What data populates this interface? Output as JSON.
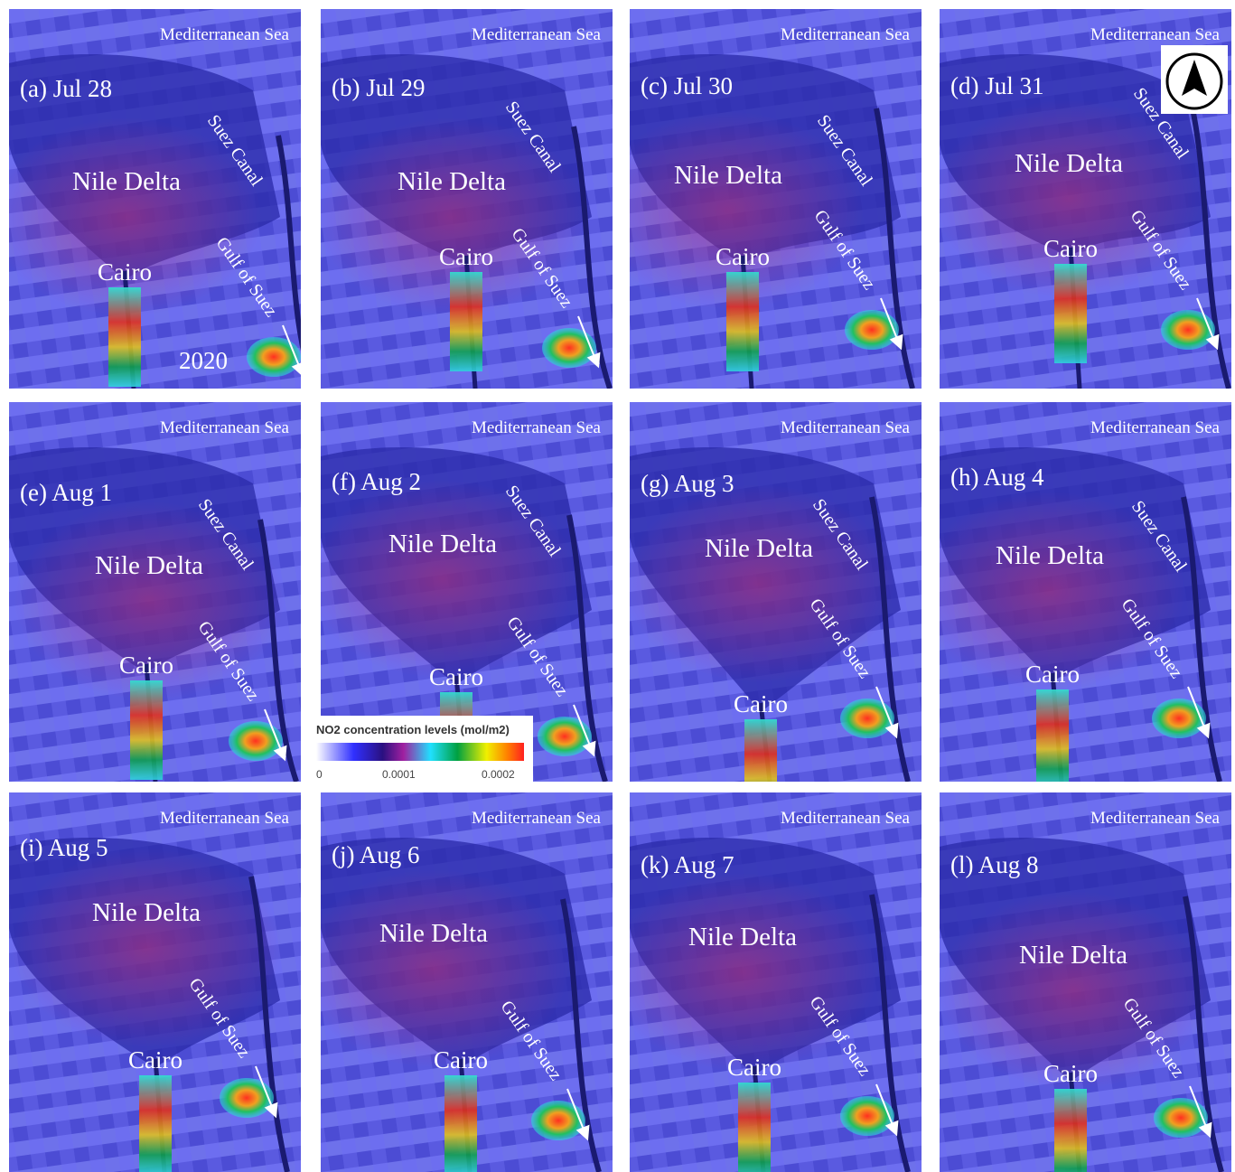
{
  "panels": [
    {
      "label": "(a) Jul 28",
      "sea": "Mediterranean Sea",
      "delta": "Nile Delta",
      "city": "Cairo",
      "canal": "Suez Canal",
      "gulf": "Gulf of Suez",
      "year": "2020"
    },
    {
      "label": "(b) Jul 29",
      "sea": "Mediterranean Sea",
      "delta": "Nile Delta",
      "city": "Cairo",
      "canal": "Suez Canal",
      "gulf": "Gulf of Suez"
    },
    {
      "label": "(c) Jul 30",
      "sea": "Mediterranean Sea",
      "delta": "Nile Delta",
      "city": "Cairo",
      "canal": "Suez Canal",
      "gulf": "Gulf of Suez"
    },
    {
      "label": "(d) Jul 31",
      "sea": "Mediterranean Sea",
      "delta": "Nile Delta",
      "city": "Cairo",
      "canal": "Suez Canal",
      "gulf": "Gulf of Suez"
    },
    {
      "label": "(e) Aug 1",
      "sea": "Mediterranean Sea",
      "delta": "Nile Delta",
      "city": "Cairo",
      "canal": "Suez Canal",
      "gulf": "Gulf of Suez"
    },
    {
      "label": "(f) Aug 2",
      "sea": "Mediterranean Sea",
      "delta": "Nile Delta",
      "city": "Cairo",
      "canal": "Suez Canal",
      "gulf": "Gulf of Suez"
    },
    {
      "label": "(g) Aug 3",
      "sea": "Mediterranean Sea",
      "delta": "Nile Delta",
      "city": "Cairo",
      "canal": "Suez Canal",
      "gulf": "Gulf of Suez"
    },
    {
      "label": "(h) Aug 4",
      "sea": "Mediterranean Sea",
      "delta": "Nile Delta",
      "city": "Cairo",
      "canal": "Suez Canal",
      "gulf": "Gulf of Suez"
    },
    {
      "label": "(i) Aug 5",
      "sea": "Mediterranean Sea",
      "delta": "Nile Delta",
      "city": "Cairo",
      "gulf": "Gulf of Suez"
    },
    {
      "label": "(j) Aug 6",
      "sea": "Mediterranean Sea",
      "delta": "Nile Delta",
      "city": "Cairo",
      "gulf": "Gulf of Suez"
    },
    {
      "label": "(k) Aug 7",
      "sea": "Mediterranean Sea",
      "delta": "Nile Delta",
      "city": "Cairo",
      "gulf": "Gulf of Suez"
    },
    {
      "label": "(l) Aug 8",
      "sea": "Mediterranean Sea",
      "delta": "Nile Delta",
      "city": "Cairo",
      "gulf": "Gulf of Suez"
    }
  ],
  "legend": {
    "title": "NO2 concentration levels (mol/m2)",
    "ticks": [
      "0",
      "0.0001",
      "0.0002"
    ]
  }
}
